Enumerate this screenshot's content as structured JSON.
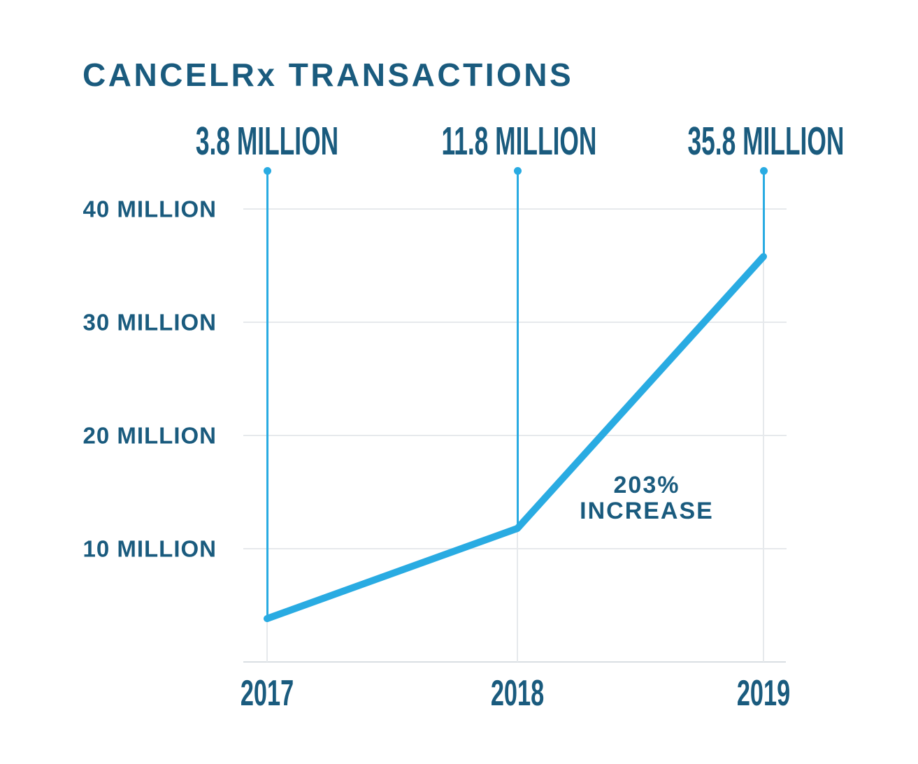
{
  "chart_data": {
    "type": "line",
    "title": "CANCELRx TRANSACTIONS",
    "categories": [
      "2017",
      "2018",
      "2019"
    ],
    "series": [
      {
        "name": "CancelRx transactions",
        "values": [
          3.8,
          11.8,
          35.8
        ]
      }
    ],
    "point_labels": [
      "3.8 MILLION",
      "11.8 MILLION",
      "35.8 MILLION"
    ],
    "y_ticks": [
      {
        "value": 40,
        "label": "40 MILLION"
      },
      {
        "value": 30,
        "label": "30 MILLION"
      },
      {
        "value": 20,
        "label": "20 MILLION"
      },
      {
        "value": 10,
        "label": "10 MILLION"
      }
    ],
    "ylim": [
      0,
      43.4
    ],
    "xlabel": "",
    "ylabel": "",
    "grid": "horizontal and vertical light gridlines",
    "legend": "none",
    "annotation_lines": [
      "203%",
      "INCREASE"
    ],
    "colors": {
      "line": "#29ABE2",
      "text": "#1A5B7E",
      "grid": "#E6E9EC",
      "axis": "#D9DEE3"
    }
  }
}
